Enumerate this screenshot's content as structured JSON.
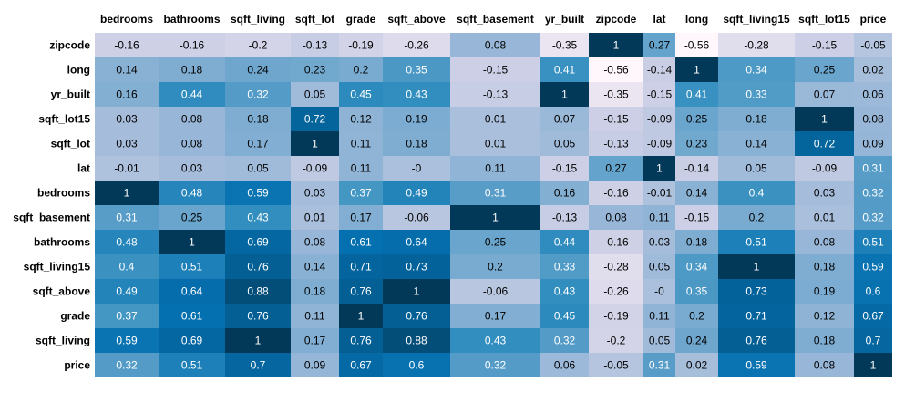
{
  "chart_data": {
    "type": "heatmap",
    "columns": [
      "bedrooms",
      "bathrooms",
      "sqft_living",
      "sqft_lot",
      "grade",
      "sqft_above",
      "sqft_basement",
      "yr_built",
      "zipcode",
      "lat",
      "long",
      "sqft_living15",
      "sqft_lot15",
      "price"
    ],
    "rows": [
      "zipcode",
      "long",
      "yr_built",
      "sqft_lot15",
      "sqft_lot",
      "lat",
      "bedrooms",
      "sqft_basement",
      "bathrooms",
      "sqft_living15",
      "sqft_above",
      "grade",
      "sqft_living",
      "price"
    ],
    "values": [
      [
        -0.16,
        -0.16,
        -0.2,
        -0.13,
        -0.19,
        -0.26,
        0.08,
        -0.35,
        1,
        0.27,
        -0.56,
        -0.28,
        -0.15,
        -0.05
      ],
      [
        0.14,
        0.18,
        0.24,
        0.23,
        0.2,
        0.35,
        -0.15,
        0.41,
        -0.56,
        -0.14,
        1,
        0.34,
        0.25,
        0.02
      ],
      [
        0.16,
        0.44,
        0.32,
        0.05,
        0.45,
        0.43,
        -0.13,
        1,
        -0.35,
        -0.15,
        0.41,
        0.33,
        0.07,
        0.06
      ],
      [
        0.03,
        0.08,
        0.18,
        0.72,
        0.12,
        0.19,
        0.01,
        0.07,
        -0.15,
        -0.09,
        0.25,
        0.18,
        1,
        0.08
      ],
      [
        0.03,
        0.08,
        0.17,
        1,
        0.11,
        0.18,
        0.01,
        0.05,
        -0.13,
        -0.09,
        0.23,
        0.14,
        0.72,
        0.09
      ],
      [
        -0.01,
        0.03,
        0.05,
        -0.09,
        0.11,
        "-0",
        0.11,
        -0.15,
        0.27,
        1,
        -0.14,
        0.05,
        -0.09,
        0.31
      ],
      [
        1,
        0.48,
        0.59,
        0.03,
        0.37,
        0.49,
        0.31,
        0.16,
        -0.16,
        -0.01,
        0.14,
        0.4,
        0.03,
        0.32
      ],
      [
        0.31,
        0.25,
        0.43,
        0.01,
        0.17,
        -0.06,
        1,
        -0.13,
        0.08,
        0.11,
        -0.15,
        0.2,
        0.01,
        0.32
      ],
      [
        0.48,
        1,
        0.69,
        0.08,
        0.61,
        0.64,
        0.25,
        0.44,
        -0.16,
        0.03,
        0.18,
        0.51,
        0.08,
        0.51
      ],
      [
        0.4,
        0.51,
        0.76,
        0.14,
        0.71,
        0.73,
        0.2,
        0.33,
        -0.28,
        0.05,
        0.34,
        1,
        0.18,
        0.59
      ],
      [
        0.49,
        0.64,
        0.88,
        0.18,
        0.76,
        1,
        -0.06,
        0.43,
        -0.26,
        "-0",
        0.35,
        0.73,
        0.19,
        0.6
      ],
      [
        0.37,
        0.61,
        0.76,
        0.11,
        1,
        0.76,
        0.17,
        0.45,
        -0.19,
        0.11,
        0.2,
        0.71,
        0.12,
        0.67
      ],
      [
        0.59,
        0.69,
        1,
        0.17,
        0.76,
        0.88,
        0.43,
        0.32,
        -0.2,
        0.05,
        0.24,
        0.76,
        0.18,
        0.7
      ],
      [
        0.32,
        0.51,
        0.7,
        0.09,
        0.67,
        0.6,
        0.32,
        0.06,
        -0.05,
        0.31,
        0.02,
        0.59,
        0.08,
        1
      ]
    ],
    "value_range": [
      -0.56,
      1
    ],
    "colormap": "PuBu",
    "colors": {
      "low": "#fff7fb",
      "high": "#023858",
      "light_text": "#ffffff",
      "dark_text": "#000000"
    },
    "legend": "none",
    "grid": false
  }
}
